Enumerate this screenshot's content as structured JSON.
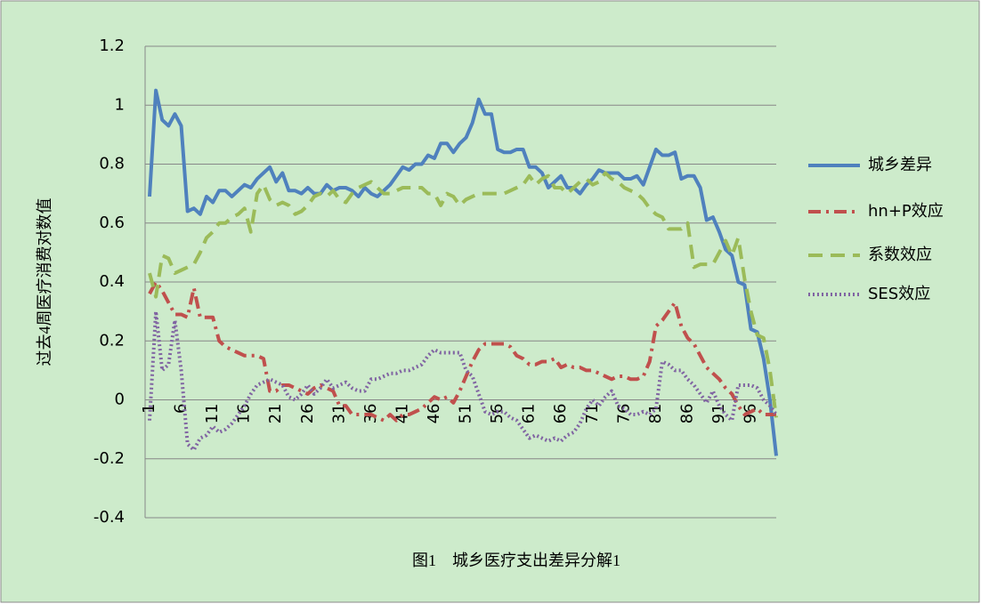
{
  "chart_data": {
    "type": "line",
    "title": "图1　城乡医疗支出差异分解1",
    "y_label": "过去4周医疗消费对数值",
    "categories": [
      1,
      null,
      null,
      null,
      null,
      6,
      null,
      null,
      null,
      null,
      11,
      null,
      null,
      null,
      null,
      16,
      null,
      null,
      null,
      null,
      21,
      null,
      null,
      null,
      null,
      26,
      null,
      null,
      null,
      null,
      31,
      null,
      null,
      null,
      null,
      36,
      null,
      null,
      null,
      null,
      41,
      null,
      null,
      null,
      null,
      46,
      null,
      null,
      null,
      null,
      51,
      null,
      null,
      null,
      null,
      56,
      null,
      null,
      null,
      null,
      61,
      null,
      null,
      null,
      null,
      66,
      null,
      null,
      null,
      null,
      71,
      null,
      null,
      null,
      null,
      76,
      null,
      null,
      null,
      null,
      81,
      null,
      null,
      null,
      null,
      86,
      null,
      null,
      null,
      null,
      91,
      null,
      null,
      null,
      null,
      96,
      null,
      null,
      null,
      null
    ],
    "ylim": [
      -0.4,
      1.2
    ],
    "yticks": [
      -0.4,
      -0.2,
      0,
      0.2,
      0.4,
      0.6,
      0.8,
      1,
      1.2
    ],
    "grid": true,
    "legend": "right",
    "series": [
      {
        "name": "城乡差异",
        "color": "#4f81bd",
        "line_style": "solid",
        "values": [
          0.69,
          1.05,
          0.95,
          0.93,
          0.97,
          0.93,
          0.64,
          0.65,
          0.63,
          0.69,
          0.67,
          0.71,
          0.71,
          0.69,
          0.71,
          0.73,
          0.72,
          0.75,
          0.77,
          0.79,
          0.74,
          0.77,
          0.71,
          0.71,
          0.7,
          0.72,
          0.7,
          0.7,
          0.73,
          0.71,
          0.72,
          0.72,
          0.71,
          0.69,
          0.72,
          0.7,
          0.69,
          0.71,
          0.73,
          0.76,
          0.79,
          0.78,
          0.8,
          0.8,
          0.83,
          0.82,
          0.87,
          0.87,
          0.84,
          0.87,
          0.89,
          0.94,
          1.02,
          0.97,
          0.97,
          0.85,
          0.84,
          0.84,
          0.85,
          0.85,
          0.79,
          0.79,
          0.77,
          0.72,
          0.74,
          0.76,
          0.72,
          0.72,
          0.7,
          0.73,
          0.75,
          0.78,
          0.77,
          0.77,
          0.77,
          0.75,
          0.75,
          0.76,
          0.73,
          0.79,
          0.85,
          0.83,
          0.83,
          0.84,
          0.75,
          0.76,
          0.76,
          0.72,
          0.61,
          0.62,
          0.57,
          0.51,
          0.49,
          0.4,
          0.39,
          0.24,
          0.23,
          0.14,
          0.0,
          -0.19
        ]
      },
      {
        "name": "hn+P效应",
        "color": "#c0504d",
        "line_style": "dashdot",
        "values": [
          0.36,
          0.4,
          0.37,
          0.33,
          0.29,
          0.29,
          0.28,
          0.38,
          0.28,
          0.28,
          0.28,
          0.2,
          0.18,
          0.17,
          0.16,
          0.15,
          0.15,
          0.15,
          0.14,
          0.03,
          0.03,
          0.05,
          0.05,
          0.04,
          0.03,
          0.02,
          0.04,
          0.05,
          0.04,
          0.03,
          -0.02,
          -0.02,
          -0.05,
          -0.05,
          -0.05,
          -0.05,
          -0.06,
          -0.07,
          -0.05,
          -0.07,
          -0.05,
          -0.05,
          -0.04,
          -0.03,
          -0.01,
          0.01,
          0.0,
          0.01,
          -0.01,
          0.03,
          0.08,
          0.13,
          0.17,
          0.19,
          0.19,
          0.19,
          0.19,
          0.18,
          0.15,
          0.14,
          0.12,
          0.12,
          0.13,
          0.13,
          0.14,
          0.11,
          0.12,
          0.11,
          0.11,
          0.1,
          0.1,
          0.09,
          0.08,
          0.07,
          0.08,
          0.08,
          0.07,
          0.07,
          0.08,
          0.13,
          0.25,
          0.27,
          0.3,
          0.33,
          0.25,
          0.21,
          0.19,
          0.15,
          0.11,
          0.09,
          0.07,
          0.04,
          0.02,
          -0.02,
          -0.05,
          -0.04,
          -0.03,
          -0.05,
          -0.05,
          -0.05
        ]
      },
      {
        "name": "系数效应",
        "color": "#9bbb59",
        "line_style": "dash",
        "values": [
          0.43,
          0.35,
          0.49,
          0.48,
          0.43,
          0.44,
          0.45,
          0.46,
          0.5,
          0.55,
          0.57,
          0.6,
          0.6,
          0.62,
          0.63,
          0.65,
          0.57,
          0.7,
          0.73,
          0.68,
          0.66,
          0.67,
          0.66,
          0.63,
          0.64,
          0.66,
          0.69,
          0.7,
          0.69,
          0.71,
          0.68,
          0.67,
          0.7,
          0.72,
          0.73,
          0.74,
          0.72,
          0.7,
          0.7,
          0.71,
          0.72,
          0.72,
          0.72,
          0.72,
          0.7,
          0.7,
          0.66,
          0.7,
          0.69,
          0.66,
          0.68,
          0.69,
          0.7,
          0.7,
          0.7,
          0.7,
          0.7,
          0.71,
          0.72,
          0.73,
          0.76,
          0.73,
          0.75,
          0.76,
          0.72,
          0.72,
          0.7,
          0.72,
          0.74,
          0.75,
          0.73,
          0.74,
          0.77,
          0.75,
          0.74,
          0.72,
          0.71,
          0.7,
          0.68,
          0.65,
          0.63,
          0.62,
          0.58,
          0.58,
          0.58,
          0.6,
          0.45,
          0.46,
          0.46,
          0.46,
          0.5,
          0.54,
          0.49,
          0.55,
          0.41,
          0.3,
          0.22,
          0.21,
          0.1,
          -0.06
        ]
      },
      {
        "name": "SES效应",
        "color": "#8064a2",
        "line_style": "dot",
        "values": [
          -0.07,
          0.3,
          0.1,
          0.12,
          0.27,
          0.1,
          -0.15,
          -0.17,
          -0.13,
          -0.12,
          -0.09,
          -0.11,
          -0.1,
          -0.08,
          -0.05,
          -0.02,
          0.02,
          0.05,
          0.06,
          0.07,
          0.06,
          0.05,
          0.01,
          0.0,
          0.02,
          0.05,
          0.02,
          0.04,
          0.07,
          0.04,
          0.05,
          0.06,
          0.04,
          0.03,
          0.03,
          0.07,
          0.07,
          0.08,
          0.09,
          0.09,
          0.1,
          0.1,
          0.11,
          0.12,
          0.15,
          0.17,
          0.16,
          0.16,
          0.16,
          0.16,
          0.1,
          0.08,
          0.02,
          -0.04,
          -0.05,
          -0.04,
          -0.04,
          -0.06,
          -0.07,
          -0.1,
          -0.13,
          -0.12,
          -0.13,
          -0.14,
          -0.13,
          -0.14,
          -0.12,
          -0.11,
          -0.08,
          -0.03,
          0.0,
          -0.02,
          0.01,
          0.03,
          -0.02,
          -0.03,
          -0.05,
          -0.05,
          -0.04,
          -0.05,
          -0.03,
          0.13,
          0.12,
          0.1,
          0.1,
          0.07,
          0.05,
          0.02,
          -0.01,
          0.03,
          -0.02,
          -0.05,
          -0.07,
          0.05,
          0.05,
          0.05,
          0.04,
          0.0,
          -0.02,
          -0.05
        ]
      }
    ]
  }
}
